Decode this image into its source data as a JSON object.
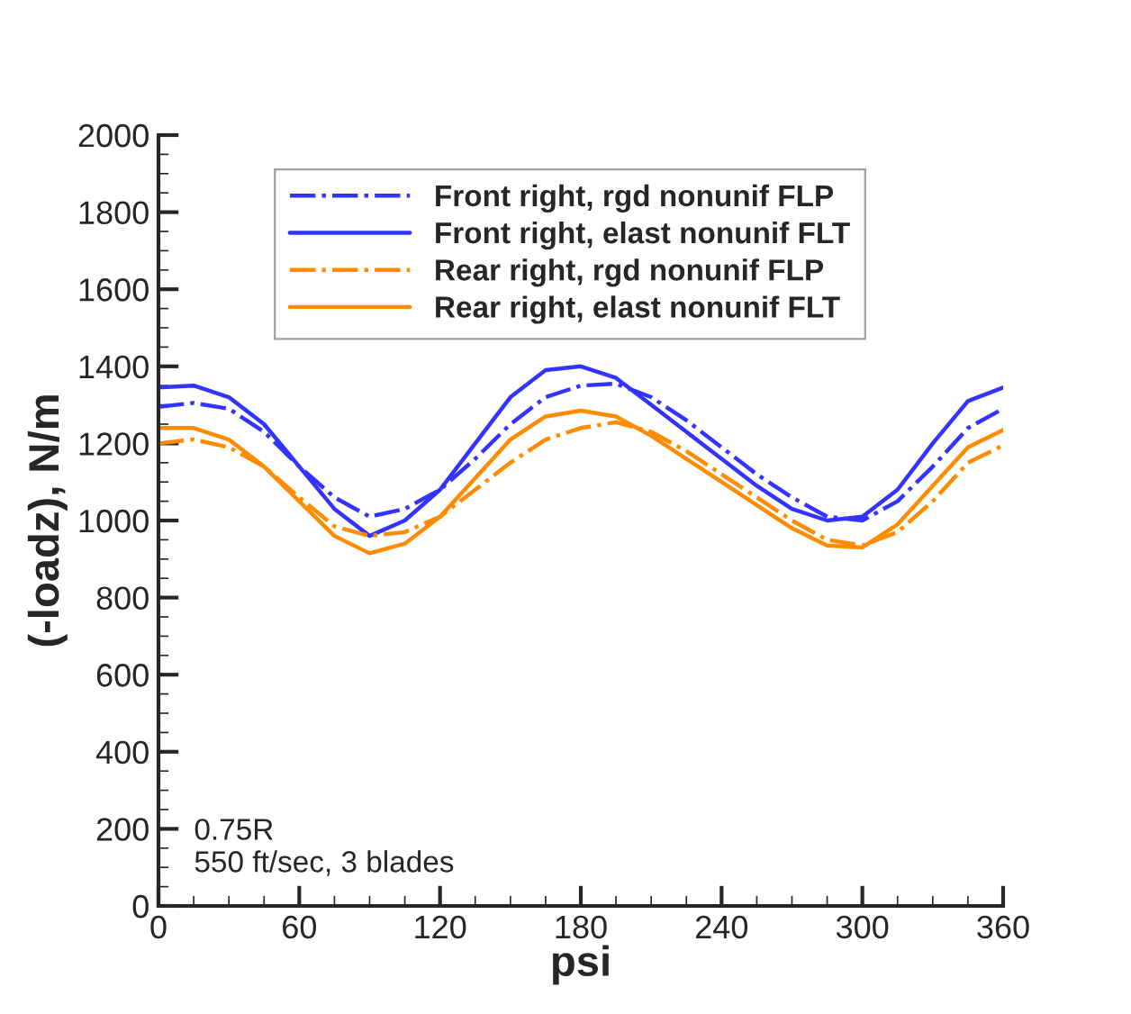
{
  "chart_data": {
    "type": "line",
    "xlabel": "psi",
    "ylabel": "(-loadz), N/m",
    "x": [
      0,
      15,
      30,
      45,
      60,
      75,
      90,
      105,
      120,
      135,
      150,
      165,
      180,
      195,
      210,
      225,
      240,
      255,
      270,
      285,
      300,
      315,
      330,
      345,
      360
    ],
    "series": [
      {
        "name": "Front right, rgd nonunif FLP",
        "color": "#3333ff",
        "line_style": "dashdot",
        "values": [
          1295,
          1305,
          1290,
          1230,
          1140,
          1060,
          1010,
          1030,
          1080,
          1160,
          1250,
          1320,
          1350,
          1355,
          1320,
          1260,
          1190,
          1120,
          1060,
          1010,
          1000,
          1050,
          1140,
          1240,
          1290
        ]
      },
      {
        "name": "Front right, elast nonunif FLT",
        "color": "#3333ff",
        "line_style": "solid",
        "values": [
          1345,
          1350,
          1320,
          1250,
          1140,
          1030,
          960,
          1000,
          1080,
          1200,
          1320,
          1390,
          1400,
          1370,
          1300,
          1230,
          1160,
          1090,
          1030,
          1000,
          1010,
          1080,
          1200,
          1310,
          1345
        ]
      },
      {
        "name": "Rear right, rgd nonunif FLP",
        "color": "#ff8c00",
        "line_style": "dashdot",
        "values": [
          1200,
          1210,
          1190,
          1140,
          1060,
          985,
          960,
          970,
          1010,
          1080,
          1150,
          1210,
          1240,
          1255,
          1230,
          1180,
          1120,
          1060,
          1000,
          950,
          935,
          970,
          1050,
          1150,
          1195
        ]
      },
      {
        "name": "Rear right, elast nonunif FLT",
        "color": "#ff8c00",
        "line_style": "solid",
        "values": [
          1240,
          1240,
          1210,
          1140,
          1050,
          960,
          915,
          940,
          1010,
          1110,
          1210,
          1270,
          1285,
          1270,
          1220,
          1160,
          1100,
          1040,
          980,
          935,
          930,
          990,
          1090,
          1190,
          1235
        ]
      }
    ],
    "xlim": [
      0,
      360
    ],
    "xticks": [
      0,
      60,
      120,
      180,
      240,
      300,
      360
    ],
    "ylim": [
      0,
      2000
    ],
    "yticks": [
      0,
      200,
      400,
      600,
      800,
      1000,
      1200,
      1400,
      1600,
      1800,
      2000
    ],
    "grid": false,
    "legend": "top",
    "annotations": [
      "0.75R\n550 ft/sec, 3 blades"
    ]
  }
}
